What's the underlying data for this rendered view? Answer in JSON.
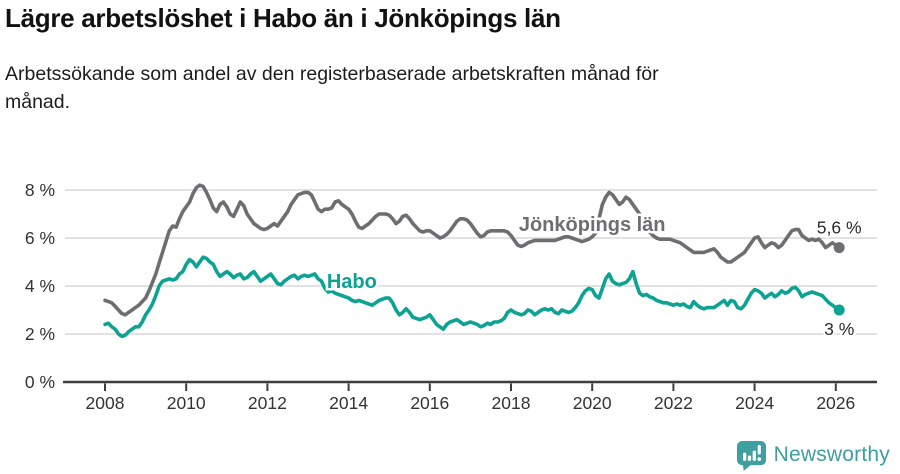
{
  "header": {
    "title": "Lägre arbetslöshet i Habo än i Jönköpings län",
    "subtitle": "Arbetssökande som andel av den registerbaserade arbetskraften månad för månad."
  },
  "colors": {
    "jonkoping_line": "#6e6e72",
    "habo_line": "#0ca392",
    "grid": "#d8d8d8",
    "axis": "#3d3d40",
    "tick_text": "#333333",
    "annotation_text": "#2b2b2b",
    "brand": "#3f9fa0"
  },
  "chart_data": {
    "type": "line",
    "title": "Lägre arbetslöshet i Habo än i Jönköpings län",
    "subtitle": "Arbetssökande som andel av den registerbaserade arbetskraften månad för månad.",
    "frequency": "monthly",
    "x_start": 2008.0,
    "x_end": 2026.083,
    "x_ticks": [
      2008,
      2010,
      2012,
      2014,
      2016,
      2018,
      2020,
      2022,
      2024,
      2026
    ],
    "y_ticks": [
      0,
      2,
      4,
      6,
      8
    ],
    "y_tick_suffix": " %",
    "ylim": [
      0,
      8.6
    ],
    "grid": "horizontal",
    "legend": "inline-labels",
    "series": [
      {
        "id": "jonkoping",
        "name": "Jönköpings län",
        "color": "#6e6e72",
        "end_label": "5,6 %",
        "end_label_position": "above",
        "label_anchor": {
          "x": 2020.0,
          "y": 6.3
        },
        "values": [
          3.4,
          3.35,
          3.3,
          3.15,
          3.0,
          2.85,
          2.8,
          2.9,
          3.0,
          3.1,
          3.2,
          3.35,
          3.5,
          3.8,
          4.15,
          4.5,
          4.95,
          5.4,
          5.85,
          6.3,
          6.5,
          6.45,
          6.8,
          7.1,
          7.3,
          7.5,
          7.85,
          8.1,
          8.2,
          8.15,
          7.9,
          7.6,
          7.25,
          7.1,
          7.4,
          7.5,
          7.3,
          7.0,
          6.9,
          7.2,
          7.5,
          7.35,
          7.0,
          6.8,
          6.6,
          6.5,
          6.4,
          6.35,
          6.4,
          6.5,
          6.6,
          6.5,
          6.7,
          6.9,
          7.1,
          7.4,
          7.6,
          7.8,
          7.85,
          7.9,
          7.9,
          7.8,
          7.5,
          7.2,
          7.1,
          7.2,
          7.2,
          7.25,
          7.5,
          7.55,
          7.4,
          7.3,
          7.2,
          7.0,
          6.7,
          6.45,
          6.4,
          6.5,
          6.6,
          6.75,
          6.9,
          7.0,
          7.0,
          7.0,
          6.95,
          6.8,
          6.6,
          6.7,
          6.9,
          6.95,
          6.8,
          6.6,
          6.45,
          6.3,
          6.25,
          6.3,
          6.3,
          6.2,
          6.1,
          6.0,
          6.05,
          6.15,
          6.3,
          6.5,
          6.7,
          6.8,
          6.8,
          6.75,
          6.6,
          6.4,
          6.2,
          6.05,
          6.1,
          6.25,
          6.3,
          6.3,
          6.3,
          6.3,
          6.3,
          6.25,
          6.1,
          5.9,
          5.7,
          5.65,
          5.7,
          5.8,
          5.85,
          5.9,
          5.9,
          5.9,
          5.9,
          5.9,
          5.9,
          5.9,
          5.95,
          6.0,
          6.05,
          6.05,
          6.0,
          5.95,
          5.9,
          5.85,
          5.9,
          5.95,
          6.05,
          6.2,
          6.8,
          7.4,
          7.7,
          7.9,
          7.8,
          7.6,
          7.4,
          7.5,
          7.7,
          7.6,
          7.4,
          7.2,
          7.0,
          6.7,
          6.4,
          6.25,
          6.1,
          6.0,
          5.95,
          5.95,
          5.95,
          5.95,
          5.9,
          5.85,
          5.8,
          5.7,
          5.6,
          5.5,
          5.4,
          5.4,
          5.4,
          5.4,
          5.45,
          5.5,
          5.55,
          5.4,
          5.2,
          5.1,
          5.0,
          5.0,
          5.1,
          5.2,
          5.3,
          5.4,
          5.6,
          5.8,
          6.0,
          6.05,
          5.8,
          5.6,
          5.7,
          5.8,
          5.75,
          5.6,
          5.7,
          5.9,
          6.1,
          6.3,
          6.35,
          6.35,
          6.1,
          6.0,
          5.9,
          5.95,
          5.9,
          5.95,
          5.8,
          5.6,
          5.7,
          5.8,
          5.7,
          5.6
        ]
      },
      {
        "id": "habo",
        "name": "Habo",
        "color": "#0ca392",
        "end_label": "3 %",
        "end_label_position": "below",
        "label_anchor": {
          "x": 2014.08,
          "y": 3.92
        },
        "values": [
          2.4,
          2.45,
          2.3,
          2.2,
          2.0,
          1.9,
          1.95,
          2.1,
          2.2,
          2.3,
          2.3,
          2.5,
          2.8,
          3.0,
          3.25,
          3.6,
          4.0,
          4.2,
          4.25,
          4.3,
          4.25,
          4.3,
          4.5,
          4.6,
          4.9,
          5.1,
          5.0,
          4.8,
          5.0,
          5.2,
          5.15,
          5.0,
          4.9,
          4.6,
          4.4,
          4.5,
          4.6,
          4.5,
          4.35,
          4.45,
          4.5,
          4.3,
          4.35,
          4.5,
          4.6,
          4.4,
          4.2,
          4.3,
          4.4,
          4.5,
          4.3,
          4.1,
          4.05,
          4.2,
          4.3,
          4.4,
          4.45,
          4.3,
          4.4,
          4.45,
          4.4,
          4.45,
          4.5,
          4.3,
          4.2,
          3.9,
          3.75,
          3.8,
          3.7,
          3.65,
          3.6,
          3.55,
          3.5,
          3.4,
          3.35,
          3.4,
          3.35,
          3.3,
          3.25,
          3.2,
          3.3,
          3.4,
          3.45,
          3.5,
          3.5,
          3.3,
          3.0,
          2.8,
          2.9,
          3.05,
          2.9,
          2.7,
          2.65,
          2.6,
          2.65,
          2.7,
          2.8,
          2.6,
          2.4,
          2.3,
          2.2,
          2.4,
          2.5,
          2.55,
          2.6,
          2.5,
          2.4,
          2.45,
          2.5,
          2.45,
          2.4,
          2.3,
          2.35,
          2.45,
          2.4,
          2.5,
          2.5,
          2.55,
          2.65,
          2.9,
          3.0,
          2.9,
          2.85,
          2.8,
          2.85,
          3.0,
          2.95,
          2.8,
          2.9,
          3.0,
          3.05,
          3.0,
          3.05,
          2.9,
          2.85,
          3.0,
          2.95,
          2.9,
          2.95,
          3.1,
          3.3,
          3.6,
          3.8,
          3.9,
          3.85,
          3.6,
          3.5,
          3.9,
          4.3,
          4.5,
          4.2,
          4.1,
          4.05,
          4.1,
          4.15,
          4.3,
          4.6,
          4.1,
          3.7,
          3.6,
          3.65,
          3.55,
          3.5,
          3.4,
          3.35,
          3.3,
          3.3,
          3.25,
          3.2,
          3.25,
          3.2,
          3.25,
          3.15,
          3.1,
          3.35,
          3.2,
          3.1,
          3.05,
          3.1,
          3.1,
          3.1,
          3.2,
          3.3,
          3.4,
          3.2,
          3.4,
          3.35,
          3.1,
          3.05,
          3.2,
          3.45,
          3.7,
          3.85,
          3.8,
          3.7,
          3.5,
          3.6,
          3.7,
          3.55,
          3.65,
          3.8,
          3.7,
          3.75,
          3.9,
          3.95,
          3.8,
          3.55,
          3.65,
          3.7,
          3.75,
          3.7,
          3.65,
          3.6,
          3.45,
          3.3,
          3.2,
          3.1,
          3.0
        ]
      }
    ]
  },
  "footer": {
    "brand": "Newsworthy"
  }
}
